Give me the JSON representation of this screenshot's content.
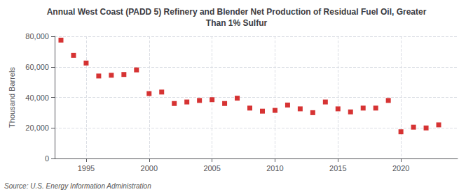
{
  "chart_data": {
    "type": "scatter",
    "title": "Annual West Coast (PADD 5) Refinery and Blender Net Production of Residual Fuel Oil, Greater\nThan 1% Sulfur",
    "y_label": "Thousand Barrels",
    "annotations": [
      "Source: U.S. Energy Information Administration"
    ],
    "x": [
      1993,
      1994,
      1995,
      1996,
      1997,
      1998,
      1999,
      2000,
      2001,
      2002,
      2003,
      2004,
      2005,
      2006,
      2007,
      2008,
      2009,
      2010,
      2011,
      2012,
      2013,
      2014,
      2015,
      2016,
      2017,
      2018,
      2019,
      2020,
      2021,
      2022,
      2023
    ],
    "values": [
      77500,
      67500,
      62500,
      54000,
      54500,
      55000,
      58000,
      42500,
      43500,
      36000,
      37000,
      38000,
      38500,
      36000,
      39500,
      33000,
      31000,
      31500,
      35000,
      32500,
      30000,
      37000,
      32500,
      30500,
      33000,
      33000,
      38000,
      17500,
      20500,
      20000,
      22000
    ],
    "color": "#cc0000",
    "marker": "square",
    "xlim": [
      1992.5,
      2024.5
    ],
    "xticks": [
      1995,
      2000,
      2005,
      2010,
      2015,
      2020
    ],
    "ylim": [
      0,
      80000
    ],
    "yticks": [
      0,
      {
        "value": 20000,
        "label": "20,000"
      },
      {
        "value": 40000,
        "label": "40,000"
      },
      {
        "value": 60000,
        "label": "60,000"
      },
      {
        "value": 80000,
        "label": "80,000"
      }
    ],
    "grid": true
  }
}
